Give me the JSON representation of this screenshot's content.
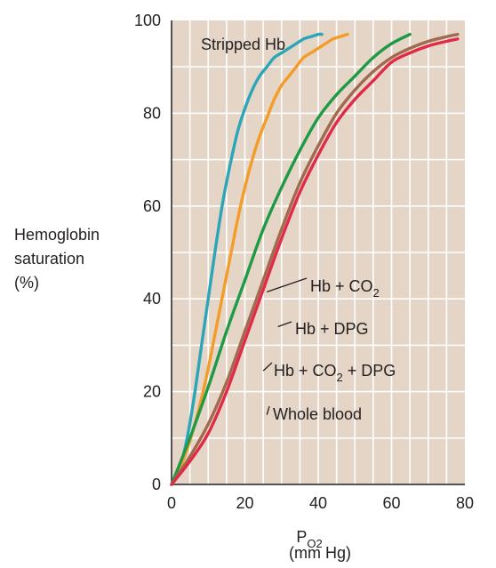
{
  "chart_data": {
    "type": "line",
    "title": "",
    "ylabel_lines": [
      "Hemoglobin",
      "saturation",
      "(%)"
    ],
    "xlabel": {
      "main": "P",
      "subscript": "O2",
      "unit": "(mm Hg)"
    },
    "xlim": [
      0,
      80
    ],
    "ylim": [
      0,
      100
    ],
    "x_ticks": [
      0,
      20,
      40,
      60,
      80
    ],
    "y_ticks": [
      0,
      20,
      40,
      60,
      80,
      100
    ],
    "grid": true,
    "background_color": "#e5d5c6",
    "grid_color": "#ffffff",
    "series": [
      {
        "name": "Stripped Hb",
        "color": "#2aa6b8",
        "x": [
          0,
          2,
          4,
          6,
          8,
          10,
          12,
          14,
          16,
          18,
          20,
          22,
          24,
          26,
          28,
          30,
          32,
          34,
          36,
          38,
          40,
          41
        ],
        "y": [
          0,
          3,
          9,
          18,
          29,
          40,
          51,
          61,
          69,
          76,
          81,
          85,
          88,
          90,
          92,
          93,
          94,
          95,
          96,
          96.5,
          97,
          97
        ]
      },
      {
        "name": "Hb + CO2",
        "color": "#f39c28",
        "x": [
          0,
          2,
          4,
          6,
          8,
          10,
          12,
          14,
          16,
          18,
          20,
          22,
          24,
          26,
          28,
          30,
          32,
          34,
          36,
          38,
          40,
          42,
          44,
          46,
          48
        ],
        "y": [
          0,
          3,
          7,
          12,
          18,
          25,
          33,
          41,
          49,
          57,
          64,
          70,
          75,
          79,
          83,
          86,
          88,
          90,
          92,
          93,
          94,
          95,
          96,
          96.5,
          97
        ]
      },
      {
        "name": "Hb + DPG",
        "color": "#1e9a46",
        "x": [
          0,
          5,
          10,
          15,
          20,
          25,
          30,
          35,
          40,
          45,
          50,
          55,
          60,
          65
        ],
        "y": [
          0,
          10,
          21,
          33,
          44,
          55,
          64,
          72,
          79,
          84,
          88,
          92,
          95,
          97
        ]
      },
      {
        "name": "Hb + CO2 + DPG",
        "color": "#a16a4e",
        "x": [
          0,
          5,
          10,
          15,
          20,
          25,
          30,
          35,
          40,
          45,
          50,
          55,
          60,
          65,
          70,
          75,
          78
        ],
        "y": [
          0,
          6,
          13,
          22,
          33,
          44,
          55,
          65,
          73,
          80,
          85,
          89,
          92,
          94,
          95.5,
          96.5,
          97
        ]
      },
      {
        "name": "Whole blood",
        "color": "#e02a48",
        "x": [
          0,
          5,
          10,
          15,
          20,
          25,
          30,
          35,
          40,
          45,
          50,
          55,
          60,
          65,
          70,
          75,
          78
        ],
        "y": [
          0,
          5,
          11,
          20,
          31,
          42,
          53,
          63,
          71,
          78,
          83,
          87,
          91,
          93,
          94.5,
          95.5,
          96
        ]
      }
    ],
    "annotations": [
      {
        "id": "stripped",
        "text": "Stripped Hb",
        "subscript": "",
        "tail": "",
        "series": "Stripped Hb",
        "point": [
          24,
          88
        ],
        "anchor": "end",
        "leader": false
      },
      {
        "id": "co2",
        "text": "Hb + CO",
        "subscript": "2",
        "tail": "",
        "series": "Hb + CO2",
        "point": [
          26,
          41.5
        ],
        "anchor": "start",
        "leader": true
      },
      {
        "id": "dpg",
        "text": "Hb + DPG",
        "subscript": "",
        "tail": "",
        "series": "Hb + DPG",
        "point": [
          29,
          34
        ],
        "anchor": "start",
        "leader": true
      },
      {
        "id": "co2dpg",
        "text": "Hb + CO",
        "subscript": "2",
        "tail": " + DPG",
        "series": "Hb + CO2 + DPG",
        "point": [
          25,
          24.5
        ],
        "anchor": "start",
        "leader": true
      },
      {
        "id": "whole",
        "text": "Whole blood",
        "subscript": "",
        "tail": "",
        "series": "Whole blood",
        "point": [
          26,
          15
        ],
        "anchor": "start",
        "leader": true
      }
    ]
  }
}
